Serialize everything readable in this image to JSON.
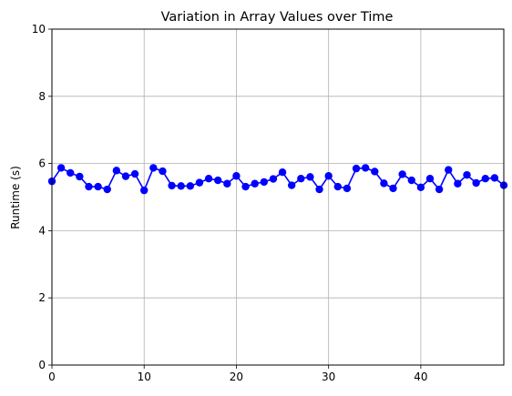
{
  "chart_data": {
    "type": "line",
    "title": "Variation in Array Values over Time",
    "xlabel": "",
    "ylabel": "Runtime (s)",
    "xlim": [
      0,
      49
    ],
    "ylim": [
      0,
      10
    ],
    "xticks": [
      0,
      10,
      20,
      30,
      40
    ],
    "yticks": [
      0,
      2,
      4,
      6,
      8,
      10
    ],
    "grid": true,
    "marker": "circle",
    "color": "#0000ff",
    "series": [
      {
        "x": [
          0,
          1,
          2,
          3,
          4,
          5,
          6,
          7,
          8,
          9,
          10,
          11,
          12,
          13,
          14,
          15,
          16,
          17,
          18,
          19,
          20,
          21,
          22,
          23,
          24,
          25,
          26,
          27,
          28,
          29,
          30,
          31,
          32,
          33,
          34,
          35,
          36,
          37,
          38,
          39,
          40,
          41,
          42,
          43,
          44,
          45,
          46,
          47,
          48,
          49
        ],
        "values": [
          5.47,
          5.87,
          5.72,
          5.61,
          5.31,
          5.31,
          5.23,
          5.79,
          5.62,
          5.69,
          5.2,
          5.87,
          5.77,
          5.34,
          5.33,
          5.33,
          5.43,
          5.55,
          5.5,
          5.4,
          5.63,
          5.31,
          5.4,
          5.45,
          5.54,
          5.74,
          5.35,
          5.55,
          5.6,
          5.23,
          5.63,
          5.31,
          5.26,
          5.85,
          5.87,
          5.76,
          5.41,
          5.26,
          5.68,
          5.5,
          5.29,
          5.55,
          5.23,
          5.81,
          5.4,
          5.66,
          5.42,
          5.55,
          5.57,
          5.35
        ]
      }
    ]
  }
}
